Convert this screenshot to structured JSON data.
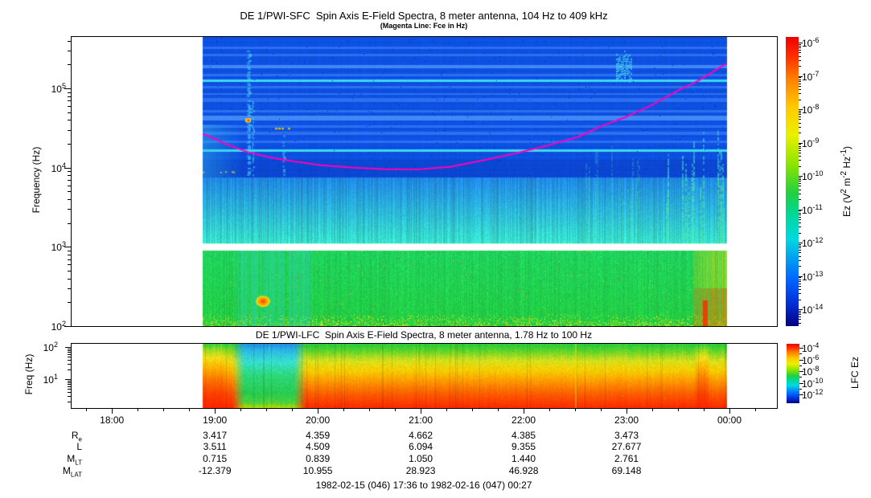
{
  "page": {
    "background": "#ffffff"
  },
  "sfc": {
    "title": "DE 1/PWI-SFC  Spin Axis E-Field Spectra, 8 meter antenna, 104 Hz to 409 kHz",
    "subtitle": "(Magenta Line: Fce in Hz)",
    "ylabel": "Frequency (Hz)",
    "y_tick_exponents": [
      5,
      4,
      3,
      2
    ],
    "colorbar": {
      "tick_exponents": [
        -6,
        -7,
        -8,
        -9,
        -10,
        -11,
        -12,
        -13,
        -14
      ],
      "label_segments": [
        [
          "Ez (V",
          false
        ],
        [
          "2",
          true
        ],
        [
          " m",
          false
        ],
        [
          "-2",
          true
        ],
        [
          " Hz",
          false
        ],
        [
          "-1",
          true
        ],
        [
          ")",
          false
        ]
      ]
    }
  },
  "lfc": {
    "title": "DE 1/PWI-LFC  Spin Axis E-Field Spectra, 8 meter antenna, 1.78 Hz to 100 Hz",
    "ylabel": "Freq (Hz)",
    "y_tick_exponents": [
      2,
      1
    ],
    "colorbar": {
      "tick_exponents": [
        -4,
        -6,
        -8,
        -10,
        -12
      ],
      "label": "LFC Ez"
    }
  },
  "time_axis": {
    "start": "17:36",
    "end": "00:27",
    "hour_labels": [
      "18:00",
      "19:00",
      "20:00",
      "21:00",
      "22:00",
      "23:00",
      "00:00"
    ]
  },
  "ephemeris": {
    "columns": [
      "19:00",
      "20:00",
      "21:00",
      "22:00",
      "23:00"
    ],
    "rows": [
      {
        "label": "R",
        "sub": "e",
        "values": [
          "3.417",
          "4.359",
          "4.662",
          "4.385",
          "3.473"
        ]
      },
      {
        "label": "L",
        "sub": "",
        "values": [
          "3.511",
          "4.509",
          "6.094",
          "9.355",
          "27.677"
        ]
      },
      {
        "label": "M",
        "sub": "LT",
        "values": [
          "0.715",
          "0.839",
          "1.050",
          "1.440",
          "2.761"
        ]
      },
      {
        "label": "M",
        "sub": "LAT",
        "values": [
          "-12.379",
          "10.955",
          "28.923",
          "46.928",
          "69.148"
        ]
      }
    ]
  },
  "caption": "1982-02-15 (046) 17:36 to 1982-02-16 (047) 00:27",
  "chart_data": [
    {
      "type": "heatmap",
      "instrument": "DE 1/PWI-SFC",
      "title": "DE 1/PWI-SFC  Spin Axis E-Field Spectra, 8 meter antenna, 104 Hz to 409 kHz",
      "subtitle": "(Magenta Line: Fce in Hz)",
      "ylabel": "Frequency (Hz)",
      "y_scale": "log",
      "y_range_hz": [
        100,
        409000
      ],
      "x_range_ut": [
        "17:36",
        "00:27"
      ],
      "data_coverage_ut": [
        "18:53",
        "23:58"
      ],
      "value_scale": {
        "label": "Ez (V^2 m^-2 Hz^-1)",
        "log10_range": [
          -14.7,
          -6
        ]
      },
      "palette": [
        [
          0,
          "#000082"
        ],
        [
          0.08,
          "#0030d8"
        ],
        [
          0.16,
          "#0064ff"
        ],
        [
          0.24,
          "#00a4f0"
        ],
        [
          0.3,
          "#00d8e0"
        ],
        [
          0.38,
          "#00d8a0"
        ],
        [
          0.46,
          "#20d040"
        ],
        [
          0.56,
          "#8ce400"
        ],
        [
          0.66,
          "#eaf000"
        ],
        [
          0.76,
          "#ffc800"
        ],
        [
          0.86,
          "#ff7c00"
        ],
        [
          0.93,
          "#ff3000"
        ],
        [
          1,
          "#ee0000"
        ]
      ],
      "fce_color": "#ff00bb",
      "fce_line_hz": [
        [
          77,
          26900
        ],
        [
          90,
          20000
        ],
        [
          104,
          15500
        ],
        [
          118,
          13200
        ],
        [
          132,
          11800
        ],
        [
          146,
          10700
        ],
        [
          165,
          10000
        ],
        [
          184,
          9550
        ],
        [
          203,
          9550
        ],
        [
          221,
          10200
        ],
        [
          240,
          12300
        ],
        [
          259,
          15100
        ],
        [
          278,
          19000
        ],
        [
          296,
          24500
        ],
        [
          310,
          33900
        ],
        [
          324,
          43700
        ],
        [
          339,
          61700
        ],
        [
          353,
          91200
        ],
        [
          367,
          129000
        ],
        [
          382,
          204000
        ]
      ],
      "bands": [
        {
          "f_hi": 409000,
          "f_lo": 7500,
          "desc": "blue background with horizontal channel banding",
          "base": "#0d50e2",
          "dark": "#0b46d2",
          "dark_f": [
            7600,
            12600
          ]
        },
        {
          "f_hi": 7500,
          "f_lo": 1100,
          "desc": "blue-to-cyan gradient continuum",
          "top": "#1f86e3",
          "bottom": "#38e2c9"
        },
        {
          "f_hi": 1100,
          "f_lo": 900,
          "desc": "no-data white gap"
        },
        {
          "f_hi": 900,
          "f_lo": 100,
          "desc": "green low-frequency band",
          "top": "#1fd35d",
          "bottom": "#23cd42"
        }
      ],
      "stripe_colors": {
        "light": "#2c70f0",
        "lighter": "#4189f5",
        "cyan": "#3fd9ee"
      },
      "stripes_hz": [
        [
          331000,
          3,
          "light"
        ],
        [
          269000,
          3,
          "light"
        ],
        [
          191000,
          4,
          "lighter"
        ],
        [
          148000,
          3,
          "light"
        ],
        [
          126000,
          3,
          "cyan"
        ],
        [
          105000,
          3,
          "light"
        ],
        [
          85000,
          2,
          "light"
        ],
        [
          72000,
          5,
          "light"
        ],
        [
          52000,
          3,
          "light"
        ],
        [
          43000,
          6,
          "lighter"
        ],
        [
          33000,
          3,
          "light"
        ],
        [
          27500,
          4,
          "light"
        ],
        [
          21400,
          3,
          "light"
        ],
        [
          16600,
          3,
          "cyan"
        ]
      ],
      "events": [
        {
          "type": "left_wedge",
          "t1": 77,
          "t2": 100,
          "f_lo": 7500,
          "f_hi": 35000
        },
        {
          "type": "left_dashes",
          "t1": 77,
          "t2": 97,
          "f_lo": 8000,
          "f_hi": 10500
        },
        {
          "type": "cyan_streak",
          "t": 103,
          "f_lo": 8000,
          "f_hi": 300000,
          "w": 4
        },
        {
          "type": "cyan_streak",
          "t": 106,
          "f_lo": 8000,
          "f_hi": 70000,
          "w": 2
        },
        {
          "type": "cyan_streak",
          "t": 124,
          "f_lo": 8000,
          "f_hi": 28000,
          "w": 3
        },
        {
          "type": "hot_blob",
          "t": 103,
          "f": 40000
        },
        {
          "type": "hot_dash",
          "t1": 112,
          "t2": 116,
          "f": 36000
        },
        {
          "type": "hot_dash",
          "t1": 119,
          "t2": 128,
          "f": 31000
        },
        {
          "type": "cyan_patch",
          "t1": 318,
          "t2": 327,
          "f_lo": 150000,
          "f_hi": 300000
        },
        {
          "type": "green_streaks",
          "t1": 300,
          "t2": 345,
          "f_lo": 1100,
          "f_hi": 20000,
          "strength": 0.4
        },
        {
          "type": "green_streaks",
          "t1": 345,
          "t2": 382,
          "f_lo": 1100,
          "f_hi": 40000,
          "strength": 1
        },
        {
          "type": "teal_patch",
          "t1": 95,
          "t2": 141,
          "f_lo": 100,
          "f_hi": 900
        },
        {
          "type": "orange_blob",
          "t": 112,
          "f": 205
        },
        {
          "type": "warm_right",
          "t1": 363,
          "t2": 382,
          "f_lo": 100,
          "f_hi": 900
        }
      ]
    },
    {
      "type": "heatmap",
      "instrument": "DE 1/PWI-LFC",
      "title": "DE 1/PWI-LFC  Spin Axis E-Field Spectra, 8 meter antenna, 1.78 Hz to 100 Hz",
      "ylabel": "Freq (Hz)",
      "y_scale": "log",
      "y_range_hz": [
        1.78,
        100
      ],
      "x_range_ut": [
        "17:36",
        "00:27"
      ],
      "data_coverage_ut": [
        "18:53",
        "23:58"
      ],
      "value_scale": {
        "label": "LFC Ez",
        "log10_range": [
          -13,
          -4
        ]
      },
      "profile": {
        "base_stops": [
          [
            0,
            "#1fc93e"
          ],
          [
            0.12,
            "#62d528"
          ],
          [
            0.27,
            "#d8e01c"
          ],
          [
            0.42,
            "#f6cf00"
          ],
          [
            0.58,
            "#ff9c00"
          ],
          [
            0.78,
            "#ff5e00"
          ],
          [
            1,
            "#ff2a00"
          ]
        ],
        "early_stops": [
          [
            0,
            "#22cc44"
          ],
          [
            0.1,
            "#9adc20"
          ],
          [
            0.22,
            "#f0e018"
          ],
          [
            0.38,
            "#ffb000"
          ],
          [
            0.58,
            "#ff7000"
          ],
          [
            0.8,
            "#ff3c00"
          ],
          [
            1,
            "#ff2600"
          ]
        ],
        "dip_stops": [
          [
            0,
            "#1f8ae0"
          ],
          [
            0.1,
            "#2ab4e4"
          ],
          [
            0.28,
            "#36e0d2"
          ],
          [
            0.5,
            "#2ed87a"
          ],
          [
            0.78,
            "#27cc50"
          ],
          [
            0.93,
            "#52d238"
          ],
          [
            1,
            "#b4d800"
          ]
        ],
        "early_window_ut": [
          "18:53",
          "19:13"
        ],
        "dip_window_ut": [
          "19:10",
          "19:53"
        ],
        "warm_spike_ut": [
          "23:39",
          "23:49"
        ]
      },
      "events": [
        {
          "type": "yellow_col",
          "t": 294
        }
      ]
    }
  ]
}
